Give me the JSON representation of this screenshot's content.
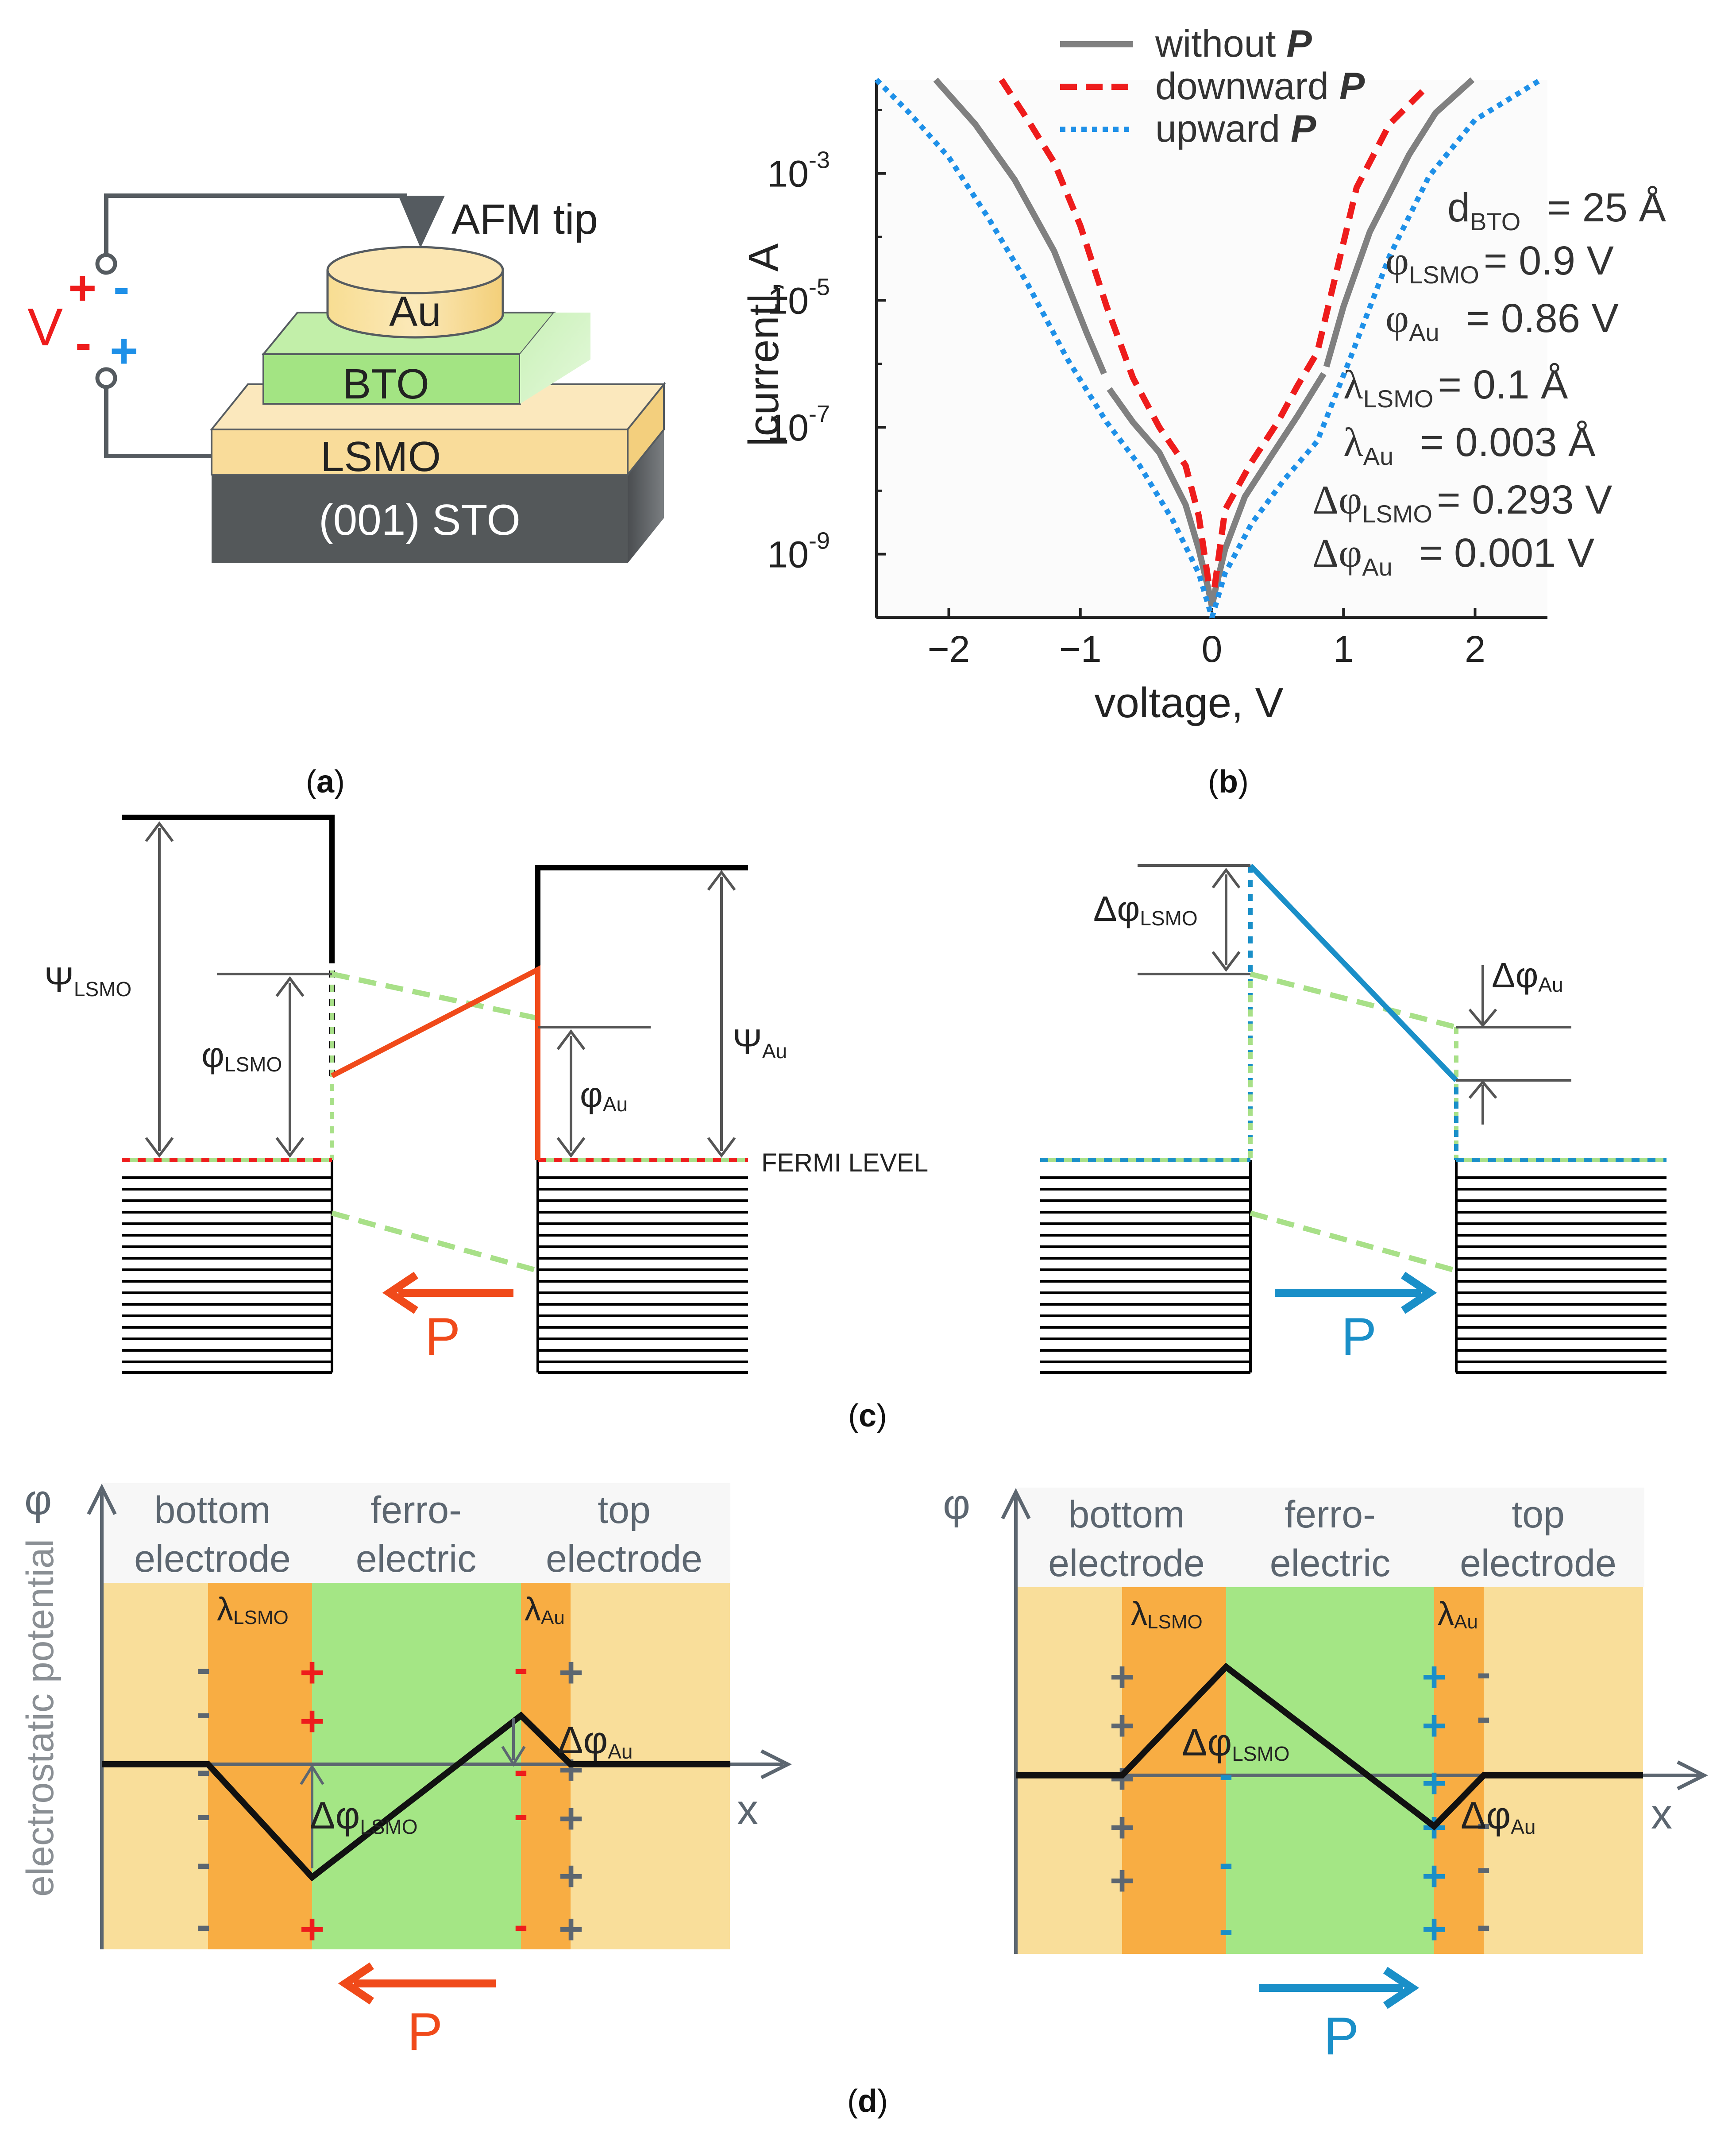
{
  "panel_a": {
    "tip_label": "AFM tip",
    "layers": {
      "au": "Au",
      "bto": "BTO",
      "lsmo": "LSMO",
      "sto": "(001) STO"
    },
    "voltage": "V",
    "sign_top_red": "+",
    "sign_top_blue": "-",
    "sign_bot_red": "-",
    "sign_bot_blue": "+",
    "caption_letter": "a"
  },
  "panel_b": {
    "legend": [
      {
        "label": "without ",
        "sym": "P",
        "color": "#808080"
      },
      {
        "label": "downward ",
        "sym": "P",
        "color": "#ee1c1c"
      },
      {
        "label": "upward ",
        "sym": "P",
        "color": "#1e90e8"
      }
    ],
    "params": [
      {
        "sym": "d",
        "sub": "BTO",
        "val": "= 25 Å"
      },
      {
        "sym": "φ",
        "sub": "LSMO",
        "val": "= 0.9 V"
      },
      {
        "sym": "φ",
        "sub": "Au",
        "val": "= 0.86 V"
      },
      {
        "sym": "λ",
        "sub": "LSMO",
        "val": "= 0.1 Å"
      },
      {
        "sym": "λ",
        "sub": "Au",
        "val": "= 0.003 Å"
      },
      {
        "sym": "Δφ",
        "sub": "LSMO",
        "val": "= 0.293 V"
      },
      {
        "sym": "Δφ",
        "sub": "Au",
        "val": "= 0.001 V"
      }
    ],
    "caption_letter": "b"
  },
  "chart_data": {
    "type": "line",
    "xlabel": "voltage, V",
    "ylabel": "|current|, A",
    "xlim": [
      -2.55,
      2.55
    ],
    "ylim": [
      1e-10,
      0.03
    ],
    "yscale": "log",
    "x_ticks": [
      "−2",
      "−1",
      "0",
      "1",
      "2"
    ],
    "x_tick_values": [
      -2,
      -1,
      0,
      1,
      2
    ],
    "y_ticks": [
      {
        "base": "10",
        "exp": "-3",
        "value": 0.001
      },
      {
        "base": "10",
        "exp": "-5",
        "value": 1e-05
      },
      {
        "base": "10",
        "exp": "-7",
        "value": 1e-07
      },
      {
        "base": "10",
        "exp": "-9",
        "value": 1e-09
      }
    ],
    "series": [
      {
        "name": "without P",
        "color": "#808080",
        "left": [
          [
            -2.1,
            0.03
          ],
          [
            -1.8,
            0.006
          ],
          [
            -1.5,
            0.0008
          ],
          [
            -1.2,
            6e-05
          ],
          [
            -0.95,
            3e-06
          ],
          [
            -0.82,
            7e-07
          ]
        ],
        "left2": [
          [
            -0.78,
            4e-07
          ],
          [
            -0.6,
            1.2e-07
          ],
          [
            -0.4,
            4e-08
          ],
          [
            -0.2,
            6e-09
          ],
          [
            -0.1,
            1.2e-09
          ],
          [
            -0.03,
            3e-10
          ],
          [
            0,
            1.5e-10
          ]
        ],
        "right": [
          [
            0,
            1.5e-10
          ],
          [
            0.03,
            3e-10
          ],
          [
            0.1,
            1.2e-09
          ],
          [
            0.25,
            8e-09
          ],
          [
            0.45,
            3.5e-08
          ],
          [
            0.65,
            1.5e-07
          ],
          [
            0.85,
            7e-07
          ]
        ],
        "right2": [
          [
            0.87,
            9e-07
          ],
          [
            1.0,
            8e-06
          ],
          [
            1.2,
            0.00012
          ],
          [
            1.5,
            0.002
          ],
          [
            1.7,
            0.009
          ],
          [
            1.98,
            0.03
          ]
        ]
      },
      {
        "name": "downward P",
        "color": "#ee1c1c",
        "left": [
          [
            -1.6,
            0.03
          ],
          [
            -1.4,
            0.007
          ],
          [
            -1.2,
            0.0015
          ],
          [
            -1.0,
            0.00015
          ],
          [
            -0.8,
            8e-06
          ],
          [
            -0.6,
            6e-07
          ],
          [
            -0.4,
            1e-07
          ],
          [
            -0.2,
            2.5e-08
          ],
          [
            -0.1,
            4e-09
          ],
          [
            -0.02,
            3e-10
          ]
        ],
        "right": [
          [
            0.02,
            3e-10
          ],
          [
            0.1,
            5e-09
          ],
          [
            0.3,
            2.8e-08
          ],
          [
            0.5,
            1.2e-07
          ],
          [
            0.65,
            4.5e-07
          ],
          [
            0.8,
            1.5e-06
          ],
          [
            0.95,
            3e-05
          ],
          [
            1.1,
            0.0006
          ],
          [
            1.35,
            0.006
          ],
          [
            1.65,
            0.025
          ]
        ]
      },
      {
        "name": "upward P",
        "color": "#1e90e8",
        "left": [
          [
            -2.6,
            0.03
          ],
          [
            -2.3,
            0.009
          ],
          [
            -2.0,
            0.0018
          ],
          [
            -1.7,
            0.0002
          ],
          [
            -1.4,
            1.8e-05
          ],
          [
            -1.1,
            1.2e-06
          ],
          [
            -0.8,
            1.2e-07
          ],
          [
            -0.55,
            2.5e-08
          ],
          [
            -0.3,
            3.5e-09
          ],
          [
            -0.1,
            5e-10
          ],
          [
            0,
            1e-10
          ]
        ],
        "right": [
          [
            0,
            1e-10
          ],
          [
            0.1,
            5e-10
          ],
          [
            0.3,
            3e-09
          ],
          [
            0.55,
            1.5e-08
          ],
          [
            0.8,
            6e-08
          ],
          [
            1.05,
            1.2e-06
          ],
          [
            1.35,
            5e-05
          ],
          [
            1.65,
            0.0009
          ],
          [
            2.0,
            0.007
          ],
          [
            2.5,
            0.03
          ]
        ]
      }
    ]
  },
  "panel_c": {
    "psi_lsmo": "Ψ",
    "psi_lsmo_sub": "LSMO",
    "phi_lsmo": "φ",
    "phi_lsmo_sub": "LSMO",
    "phi_au": "φ",
    "phi_au_sub": "Au",
    "psi_au": "Ψ",
    "psi_au_sub": "Au",
    "fermi": "FERMI LEVEL",
    "dphi_lsmo": "Δφ",
    "dphi_lsmo_sub": "LSMO",
    "dphi_au": "Δφ",
    "dphi_au_sub": "Au",
    "p_label": "P",
    "caption_letter": "c"
  },
  "panel_d": {
    "phi_axis": "φ",
    "x_axis": "x",
    "ylabel": "electrostatic potential",
    "region_bottom": [
      "bottom",
      "electrode"
    ],
    "region_ferro": [
      "ferro-",
      "electric"
    ],
    "region_top": [
      "top",
      "electrode"
    ],
    "lambda": "λ",
    "lambda_lsmo_sub": "LSMO",
    "lambda_au_sub": "Au",
    "dphi": "Δφ",
    "dphi_lsmo_sub": "LSMO",
    "dphi_au_sub": "Au",
    "plus": "+",
    "minus": "-",
    "p_label": "P",
    "caption_letter": "d"
  },
  "colors": {
    "red": "#ee1c1c",
    "orange_red": "#f04a1a",
    "blue": "#1e90e8",
    "cyan": "#1a8fc8",
    "gray": "#808080",
    "gold": "#f9de9a",
    "orange": "#f8ad43",
    "green": "#a4e685",
    "dash_green": "#a8e088",
    "sto": "#54585a",
    "dark": "#333a40"
  }
}
